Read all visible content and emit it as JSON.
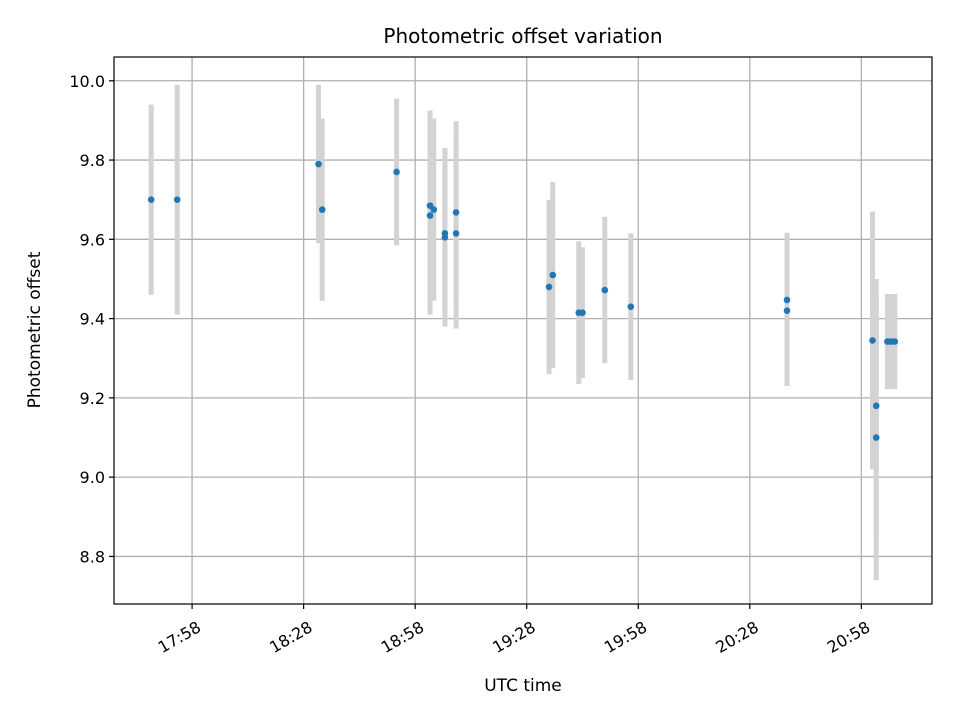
{
  "chart_data": {
    "type": "scatter",
    "title": "Photometric offset variation",
    "xlabel": "UTC time",
    "ylabel": "Photometric offset",
    "x_axis": "time",
    "xlim": [
      "17:37",
      "21:17"
    ],
    "ylim": [
      8.68,
      10.06
    ],
    "x_ticks": [
      "17:58",
      "18:28",
      "18:58",
      "19:28",
      "19:58",
      "20:28",
      "20:58"
    ],
    "y_ticks": [
      8.8,
      9.0,
      9.2,
      9.4,
      9.6,
      9.8,
      10.0
    ],
    "grid": true,
    "colors": {
      "point": "#1f77b4",
      "errorbar": "#d3d3d3",
      "grid": "#b0b0b0"
    },
    "points": [
      {
        "x": "17:47",
        "y": 9.7,
        "err": 0.24
      },
      {
        "x": "17:54",
        "y": 9.7,
        "err": 0.29
      },
      {
        "x": "18:32",
        "y": 9.79,
        "err": 0.2
      },
      {
        "x": "18:33",
        "y": 9.675,
        "err": 0.23
      },
      {
        "x": "18:53",
        "y": 9.77,
        "err": 0.185
      },
      {
        "x": "19:02",
        "y": 9.685,
        "err": 0.24
      },
      {
        "x": "19:02",
        "y": 9.66,
        "err": 0.25
      },
      {
        "x": "19:03",
        "y": 9.675,
        "err": 0.23
      },
      {
        "x": "19:06",
        "y": 9.605,
        "err": 0.225
      },
      {
        "x": "19:06",
        "y": 9.615,
        "err": 0.21
      },
      {
        "x": "19:09",
        "y": 9.668,
        "err": 0.23
      },
      {
        "x": "19:09",
        "y": 9.615,
        "err": 0.24
      },
      {
        "x": "19:34",
        "y": 9.48,
        "err": 0.22
      },
      {
        "x": "19:35",
        "y": 9.51,
        "err": 0.235
      },
      {
        "x": "19:42",
        "y": 9.415,
        "err": 0.18
      },
      {
        "x": "19:43",
        "y": 9.415,
        "err": 0.165
      },
      {
        "x": "19:49",
        "y": 9.472,
        "err": 0.185
      },
      {
        "x": "19:56",
        "y": 9.43,
        "err": 0.185
      },
      {
        "x": "20:38",
        "y": 9.42,
        "err": 0.19
      },
      {
        "x": "20:38",
        "y": 9.447,
        "err": 0.17
      },
      {
        "x": "21:01",
        "y": 9.345,
        "err": 0.325
      },
      {
        "x": "21:02",
        "y": 9.1,
        "err": 0.36
      },
      {
        "x": "21:02",
        "y": 9.18,
        "err": 0.32
      },
      {
        "x": "21:05",
        "y": 9.342,
        "err": 0.12
      },
      {
        "x": "21:06",
        "y": 9.342,
        "err": 0.12
      },
      {
        "x": "21:07",
        "y": 9.342,
        "err": 0.12
      }
    ]
  }
}
